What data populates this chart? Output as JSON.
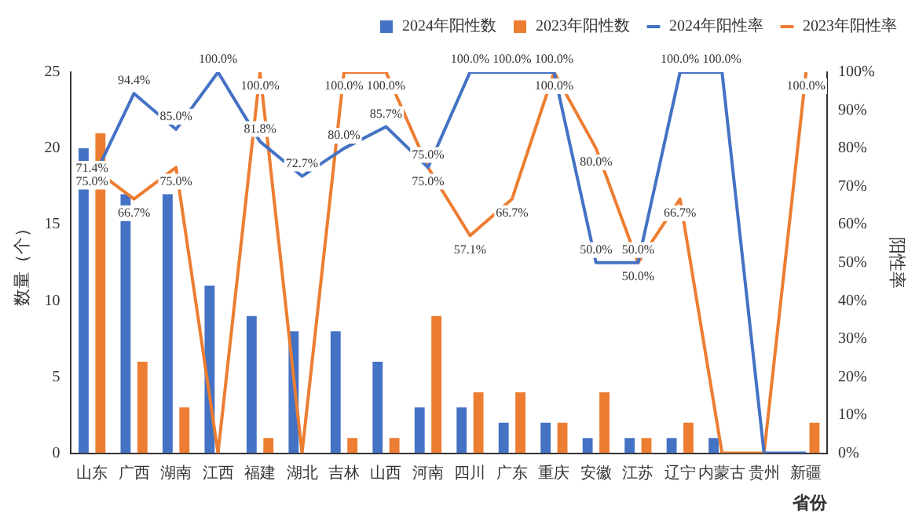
{
  "chart_data": {
    "type": "bar",
    "xlabel": "省份",
    "ylabel": "数量（个）",
    "y2label": "阳性率",
    "categories": [
      "山东",
      "广西",
      "湖南",
      "江西",
      "福建",
      "湖北",
      "吉林",
      "山西",
      "河南",
      "四川",
      "广东",
      "重庆",
      "安徽",
      "江苏",
      "辽宁",
      "内蒙古",
      "贵州",
      "新疆"
    ],
    "series": [
      {
        "name": "2024年阳性数",
        "color": "#4472c4",
        "values": [
          20,
          17,
          17,
          11,
          9,
          8,
          8,
          6,
          3,
          3,
          2,
          2,
          1,
          1,
          1,
          1,
          0,
          0
        ]
      },
      {
        "name": "2023年阳性数",
        "color": "#ed7d31",
        "values": [
          21,
          6,
          3,
          0,
          1,
          0,
          1,
          1,
          9,
          4,
          4,
          2,
          4,
          1,
          2,
          0,
          0,
          2
        ]
      },
      {
        "name": "2024年阳性率",
        "type": "line",
        "axis": "y2",
        "color": "#4472c4",
        "values": [
          71.4,
          94.4,
          85.0,
          100.0,
          81.8,
          72.7,
          80.0,
          85.7,
          75.0,
          100.0,
          100.0,
          100.0,
          50.0,
          50.0,
          100.0,
          100.0,
          0,
          0
        ],
        "value_labels": [
          "71.4%",
          "94.4%",
          "85.0%",
          "100.0%",
          "81.8%",
          "72.7%",
          "80.0%",
          "85.7%",
          "75.0%",
          "100.0%",
          "100.0%",
          "100.0%",
          "50.0%",
          "50.0%",
          "100.0%",
          "100.0%",
          null,
          null
        ]
      },
      {
        "name": "2023年阳性率",
        "type": "line",
        "axis": "y2",
        "color": "#ed7d31",
        "values": [
          75.0,
          66.7,
          75.0,
          0,
          100.0,
          0,
          100.0,
          100.0,
          75.0,
          57.1,
          66.7,
          100.0,
          80.0,
          50.0,
          66.7,
          0,
          0,
          100.0
        ],
        "value_labels": [
          "75.0%",
          "66.7%",
          "75.0%",
          null,
          "100.0%",
          null,
          "100.0%",
          "100.0%",
          "75.0%",
          "57.1%",
          "66.7%",
          "100.0%",
          "80.0%",
          "50.0%",
          "66.7%",
          null,
          null,
          "100.0%"
        ]
      }
    ],
    "ylim": [
      0,
      25
    ],
    "yticks": [
      0,
      5,
      10,
      15,
      20,
      25
    ],
    "y2lim": [
      0,
      100
    ],
    "y2ticks": [
      {
        "value": 0,
        "label": "0%"
      },
      {
        "value": 10,
        "label": "10%"
      },
      {
        "value": 20,
        "label": "20%"
      },
      {
        "value": 30,
        "label": "30%"
      },
      {
        "value": 40,
        "label": "40%"
      },
      {
        "value": 50,
        "label": "50%"
      },
      {
        "value": 60,
        "label": "60%"
      },
      {
        "value": 70,
        "label": "70%"
      },
      {
        "value": 80,
        "label": "80%"
      },
      {
        "value": 90,
        "label": "90%"
      },
      {
        "value": 100,
        "label": "100%"
      }
    ],
    "legend": "top right",
    "grid": false,
    "marker": "none",
    "line_style": "solid"
  }
}
